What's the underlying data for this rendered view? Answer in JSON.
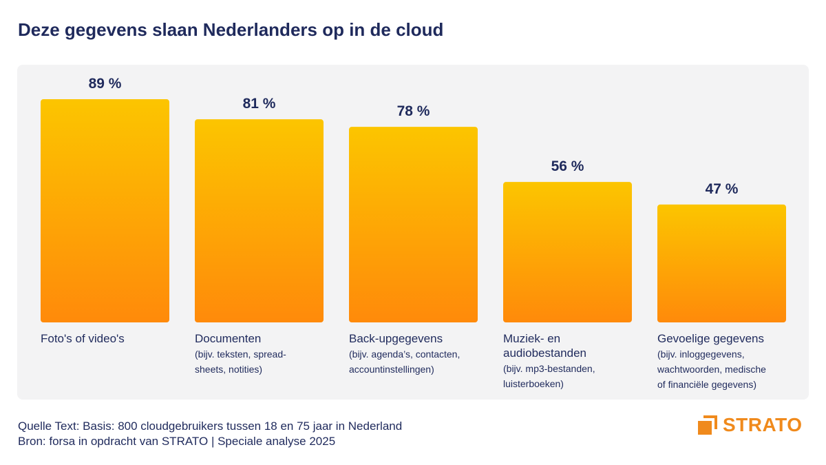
{
  "title": "Deze gegevens slaan Nederlanders op in de cloud",
  "chart_data": {
    "type": "bar",
    "categories": [
      "Foto's of video's",
      "Documenten",
      "Back-upgegevens",
      "Muziek- en audiobestanden",
      "Gevoelige gegevens"
    ],
    "category_labels": [
      {
        "name": "Foto's of video's",
        "sub": ""
      },
      {
        "name": "Documenten",
        "sub": "(bijv. teksten, spread-\nsheets, notities)"
      },
      {
        "name": "Back-upgegevens",
        "sub": "(bijv. agenda’s, contacten,\naccountinstellingen)"
      },
      {
        "name": "Muziek- en\naudiobestanden",
        "sub": "(bijv. mp3-bestanden,\nluisterboeken)"
      },
      {
        "name": "Gevoelige gegevens",
        "sub": "(bijv. inloggegevens,\nwachtwoorden, medische\nof financiële gegevens)"
      }
    ],
    "values": [
      89,
      81,
      78,
      56,
      47
    ],
    "value_labels": [
      "89 %",
      "81 %",
      "78 %",
      "56 %",
      "47 %"
    ],
    "ylim": [
      0,
      100
    ],
    "grid": false,
    "colors": {
      "bar_top": "#fcc500",
      "bar_bottom": "#ff8a0a"
    }
  },
  "footer": {
    "line1": "Quelle Text: Basis: 800 cloudgebruikers tussen 18 en 75 jaar in Nederland",
    "line2": "Bron: forsa in opdracht van STRATO | Speciale analyse 2025"
  },
  "logo": {
    "text": "STRATO",
    "icon": "strato-logo-icon",
    "color": "#f08a1c"
  }
}
